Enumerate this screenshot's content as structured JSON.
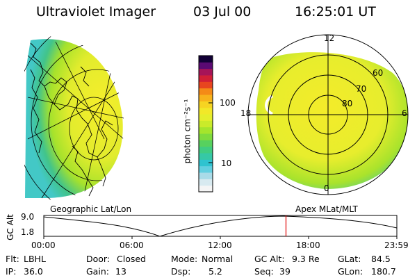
{
  "header": {
    "instrument": "Ultraviolet Imager",
    "date": "03 Jul 00",
    "time": "16:25:01 UT"
  },
  "colorbar": {
    "label": "photon cm⁻²s⁻¹",
    "ticks": [
      "100",
      "10"
    ],
    "colors": [
      "#f5f5f5",
      "#d8eaf0",
      "#a9dbe8",
      "#62cfe0",
      "#2fc3d0",
      "#36c8a6",
      "#40cc82",
      "#57d15e",
      "#7fdb3d",
      "#a5e52c",
      "#caeb2a",
      "#e5ee2c",
      "#f2e828",
      "#f6d422",
      "#f7b21c",
      "#f48a17",
      "#e8451f",
      "#d11f36",
      "#a61458",
      "#5b0a73",
      "#120036"
    ]
  },
  "geo_panel": {
    "label": "Geographic Lat/Lon"
  },
  "polar_panel": {
    "label": "Apex MLat/MLT",
    "mlt_labels": [
      "12",
      "18",
      "6",
      "0"
    ],
    "lat_labels": [
      "60",
      "70",
      "80"
    ]
  },
  "orbit": {
    "axis_title": "GC Alt",
    "y_ticks": [
      "9.0",
      "1.8"
    ],
    "x_ticks": [
      "00:00",
      "06:00",
      "12:00",
      "18:00",
      "23:59"
    ],
    "current_time_fraction": 0.686
  },
  "footer": {
    "filter_label": "Flt:",
    "filter_value": "LBHL",
    "ip_label": "IP:",
    "ip_value": "36.0",
    "door_label": "Door:",
    "door_value": "Closed",
    "gain_label": "Gain:",
    "gain_value": "13",
    "mode_label": "Mode:",
    "mode_value": "Normal",
    "dsp_label": "Dsp:",
    "dsp_value": "5.2",
    "gcalt_label": "GC Alt:",
    "gcalt_value": "9.3 Re",
    "seq_label": "Seq:",
    "seq_value": "39",
    "glat_label": "GLat:",
    "glat_value": "84.5",
    "glon_label": "GLon:",
    "glon_value": "180.7"
  }
}
